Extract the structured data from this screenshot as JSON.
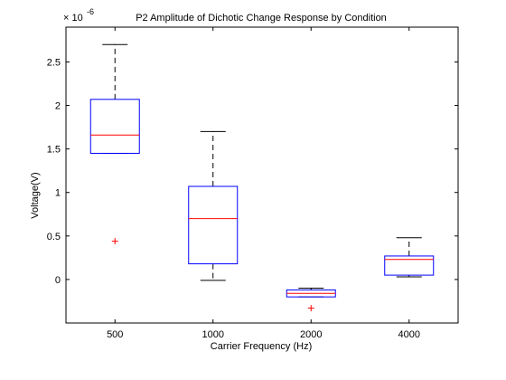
{
  "chart_data": {
    "type": "box",
    "title": "P2 Amplitude of Dichotic Change Response by Condition",
    "xlabel": "Carrier Frequency (Hz)",
    "ylabel": "Voltage(V)",
    "y_multiplier": "× 10",
    "y_exponent": "-6",
    "ylim": [
      -0.5,
      2.9
    ],
    "yticks": [
      {
        "value": 0,
        "label": "0"
      },
      {
        "value": 0.5,
        "label": "0.5"
      },
      {
        "value": 1,
        "label": "1"
      },
      {
        "value": 1.5,
        "label": "1.5"
      },
      {
        "value": 2,
        "label": "2"
      },
      {
        "value": 2.5,
        "label": "2.5"
      }
    ],
    "categories": [
      "500",
      "1000",
      "2000",
      "4000"
    ],
    "boxes": [
      {
        "category": "500",
        "whisker_low": 1.45,
        "q1": 1.45,
        "median": 1.66,
        "q3": 2.07,
        "whisker_high": 2.7,
        "outliers": [
          0.44
        ]
      },
      {
        "category": "1000",
        "whisker_low": -0.01,
        "q1": 0.18,
        "median": 0.7,
        "q3": 1.07,
        "whisker_high": 1.7,
        "outliers": []
      },
      {
        "category": "2000",
        "whisker_low": -0.2,
        "q1": -0.2,
        "median": -0.16,
        "q3": -0.12,
        "whisker_high": -0.1,
        "outliers": [
          -0.33
        ]
      },
      {
        "category": "4000",
        "whisker_low": 0.03,
        "q1": 0.05,
        "median": 0.23,
        "q3": 0.27,
        "whisker_high": 0.48,
        "outliers": []
      }
    ],
    "grid": false,
    "colors": {
      "box": "#0000ff",
      "median": "#ff0000",
      "whisker": "#000000",
      "outlier": "#ff0000"
    }
  }
}
